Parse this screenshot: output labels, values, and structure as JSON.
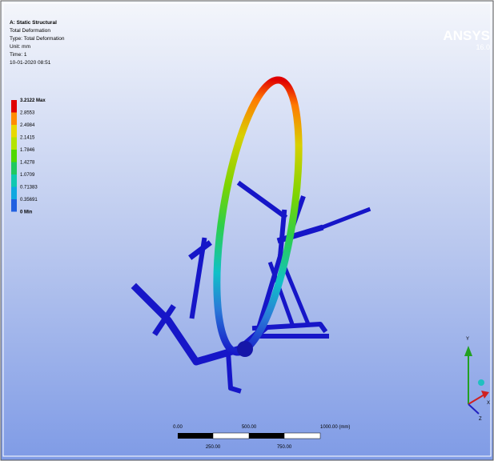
{
  "header": {
    "title": "A: Static Structural",
    "lines": [
      "Total Deformation",
      "Type: Total Deformation",
      "Unit: mm",
      "Time: 1",
      "10-01-2020 08:51"
    ]
  },
  "legend": {
    "labels": [
      "3.2122 Max",
      "2.8553",
      "2.4984",
      "2.1415",
      "1.7846",
      "1.4278",
      "1.0709",
      "0.71383",
      "0.35691",
      "0 Min"
    ]
  },
  "logo": {
    "name": "ANSYS",
    "version": "16.0"
  },
  "scale_bar": {
    "top_labels": [
      "0.00",
      "500.00",
      "1000.00 (mm)"
    ],
    "bottom_labels": [
      "250.00",
      "750.00"
    ]
  },
  "triad": {
    "axes": [
      "Y",
      "X",
      "Z"
    ]
  }
}
